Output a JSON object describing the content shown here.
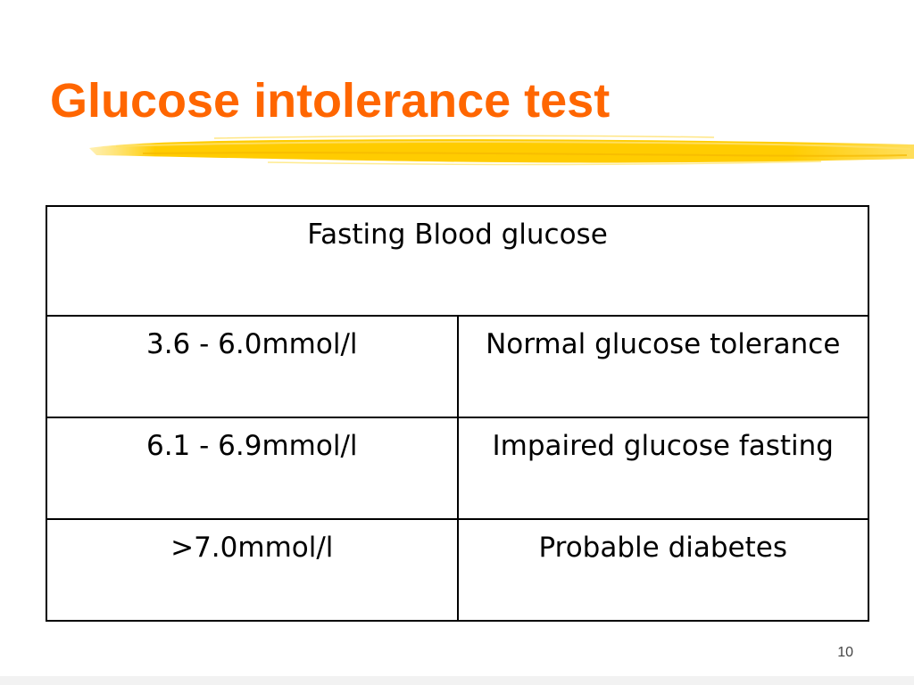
{
  "slide": {
    "title": "Glucose intolerance test",
    "page_number": "10"
  },
  "table": {
    "header": "Fasting Blood glucose",
    "rows": [
      {
        "range": "3.6 - 6.0mmol/l",
        "interpretation": "Normal glucose tolerance"
      },
      {
        "range": "6.1 - 6.9mmol/l",
        "interpretation": "Impaired glucose fasting"
      },
      {
        "range": ">7.0mmol/l",
        "interpretation": "Probable diabetes"
      }
    ]
  },
  "colors": {
    "title": "#ff6600",
    "underline_brush": "#ffcc00",
    "table_border": "#000000"
  }
}
